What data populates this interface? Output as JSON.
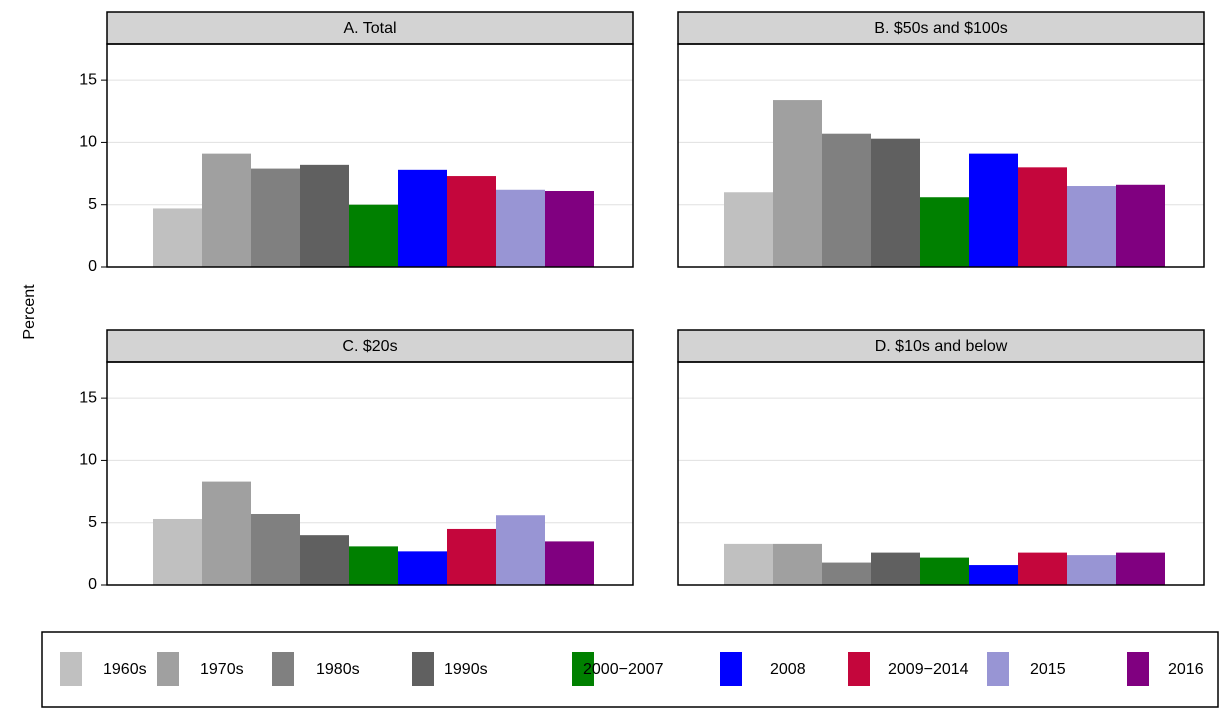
{
  "chart_data": {
    "type": "bar",
    "y_label": "Percent",
    "categories": [
      "1960s",
      "1970s",
      "1980s",
      "1990s",
      "2000−2007",
      "2008",
      "2009−2014",
      "2015",
      "2016"
    ],
    "colors": [
      "#c0c0c0",
      "#a0a0a0",
      "#808080",
      "#606060",
      "#008000",
      "#0000ff",
      "#c4063c",
      "#9895d4",
      "#800080"
    ],
    "ylim": [
      0,
      17.9
    ],
    "yticks": [
      0,
      5,
      10,
      15
    ],
    "grid": true,
    "panels": [
      {
        "title": "A. Total",
        "values": [
          4.7,
          9.1,
          7.9,
          8.2,
          5.0,
          7.8,
          7.3,
          6.2,
          6.1
        ]
      },
      {
        "title": "B. $50s and $100s",
        "values": [
          6.0,
          13.4,
          10.7,
          10.3,
          5.6,
          9.1,
          8.0,
          6.5,
          6.6
        ]
      },
      {
        "title": "C. $20s",
        "values": [
          5.3,
          8.3,
          5.7,
          4.0,
          3.1,
          2.7,
          4.5,
          5.6,
          3.5
        ]
      },
      {
        "title": "D. $10s and below",
        "values": [
          3.3,
          3.3,
          1.8,
          2.6,
          2.2,
          1.6,
          2.6,
          2.4,
          2.6
        ]
      }
    ]
  }
}
